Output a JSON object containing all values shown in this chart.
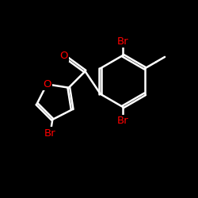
{
  "background_color": "#000000",
  "bond_color": "#ffffff",
  "atom_colors": {
    "Br": "#ff0000",
    "O": "#ff0000",
    "C": "#ffffff"
  },
  "bond_width": 1.8,
  "font_size_atom": 9.5,
  "figsize": [
    2.5,
    2.5
  ],
  "dpi": 100,
  "xlim": [
    0,
    10
  ],
  "ylim": [
    0,
    10
  ]
}
